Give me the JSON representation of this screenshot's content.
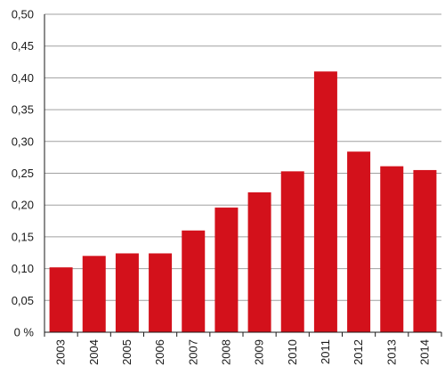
{
  "chart_data": {
    "type": "bar",
    "categories": [
      "2003",
      "2004",
      "2005",
      "2006",
      "2007",
      "2008",
      "2009",
      "2010",
      "2011",
      "2012",
      "2013",
      "2014"
    ],
    "values": [
      0.102,
      0.12,
      0.124,
      0.124,
      0.16,
      0.196,
      0.22,
      0.253,
      0.41,
      0.284,
      0.261,
      0.255
    ],
    "title": "",
    "xlabel": "",
    "ylabel": "",
    "ylim": [
      0,
      0.5
    ],
    "y_ticks": [
      "0 %",
      "0,05",
      "0,10",
      "0,15",
      "0,20",
      "0,25",
      "0,30",
      "0,35",
      "0,40",
      "0,45",
      "0,50"
    ],
    "grid": true,
    "bar_color": "#d3111b"
  }
}
